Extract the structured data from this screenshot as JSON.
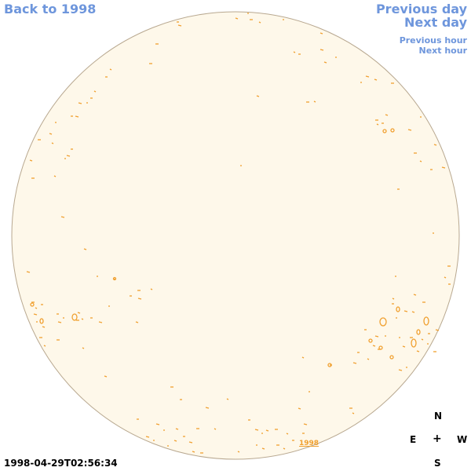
{
  "navigation": {
    "back_link": "Back to 1998",
    "previous_day": "Previous day",
    "next_day": "Next day",
    "previous_hour": "Previous hour",
    "next_hour": "Next hour"
  },
  "compass": {
    "north": "N",
    "east": "E",
    "west": "W",
    "south": "S",
    "center": "+"
  },
  "timestamp": "1998-04-29T02:56:34",
  "year_label": "1998",
  "colors": {
    "disk_fill": "#fef8ea",
    "disk_outline": "#b8a890",
    "contour": "#f0a030",
    "link": "#6e96dc"
  }
}
